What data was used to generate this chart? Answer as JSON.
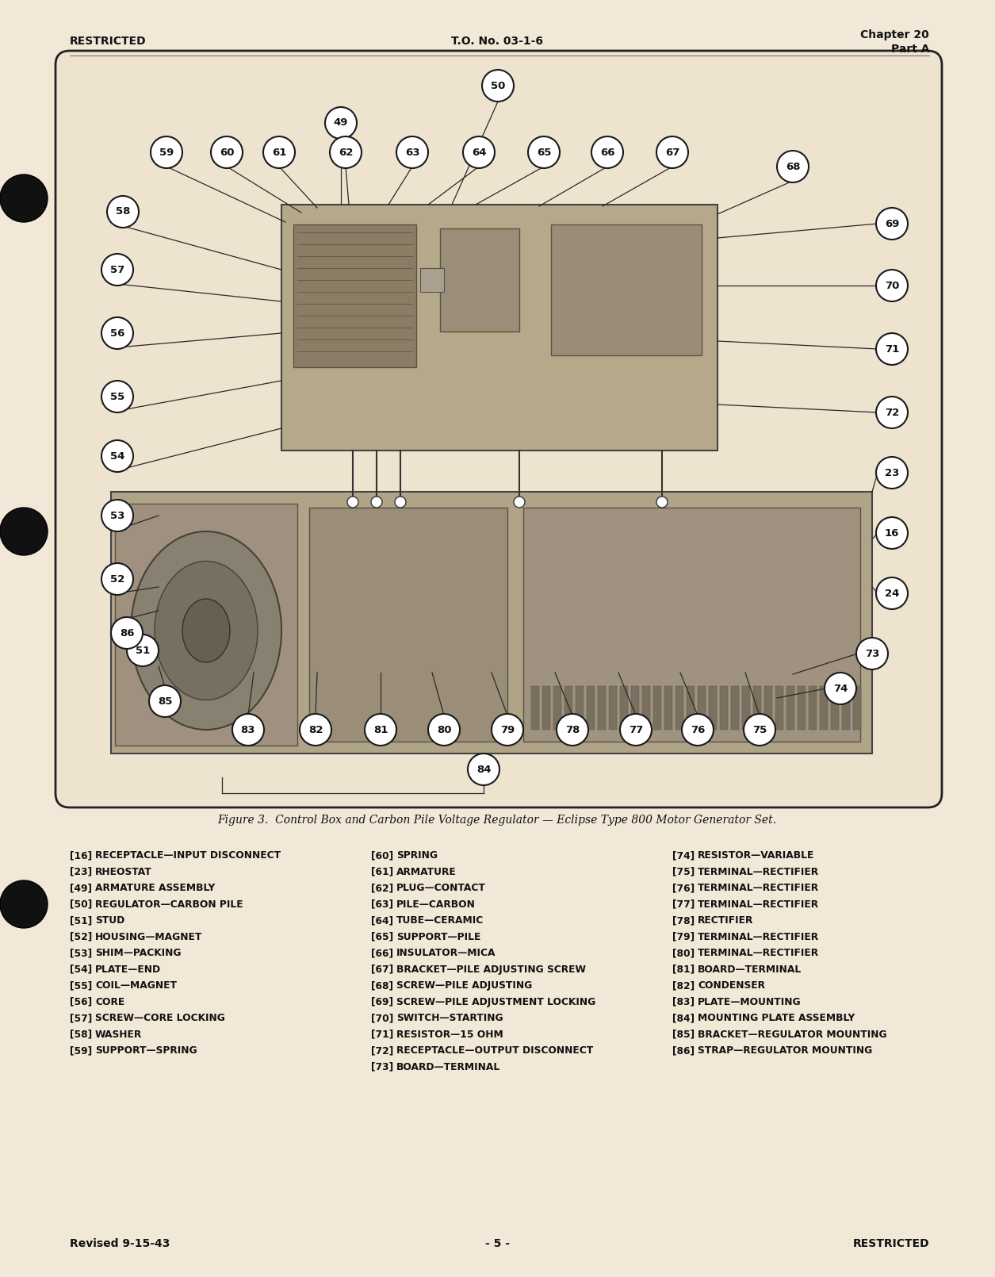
{
  "page_bg": "#f2e8d8",
  "diagram_bg": "#ede3cf",
  "header_left": "RESTRICTED",
  "header_center": "T.O. No. 03-1-6",
  "header_right_line1": "Chapter 20",
  "header_right_line2": "Part A",
  "footer_left": "Revised 9-15-43",
  "footer_center": "- 5 -",
  "footer_right": "RESTRICTED",
  "figure_caption": "Figure 3.  Control Box and Carbon Pile Voltage Regulator — Eclipse Type 800 Motor Generator Set.",
  "legend_col1": [
    [
      "[16]",
      "RECEPTACLE—INPUT DISCONNECT"
    ],
    [
      "[23]",
      "RHEOSTAT"
    ],
    [
      "[49]",
      "ARMATURE ASSEMBLY"
    ],
    [
      "[50]",
      "REGULATOR—CARBON PILE"
    ],
    [
      "[51]",
      "STUD"
    ],
    [
      "[52]",
      "HOUSING—MAGNET"
    ],
    [
      "[53]",
      "SHIM—PACKING"
    ],
    [
      "[54]",
      "PLATE—END"
    ],
    [
      "[55]",
      "COIL—MAGNET"
    ],
    [
      "[56]",
      "CORE"
    ],
    [
      "[57]",
      "SCREW—CORE LOCKING"
    ],
    [
      "[58]",
      "WASHER"
    ],
    [
      "[59]",
      "SUPPORT—SPRING"
    ]
  ],
  "legend_col2": [
    [
      "[60]",
      "SPRING"
    ],
    [
      "[61]",
      "ARMATURE"
    ],
    [
      "[62]",
      "PLUG—CONTACT"
    ],
    [
      "[63]",
      "PILE—CARBON"
    ],
    [
      "[64]",
      "TUBE—CERAMIC"
    ],
    [
      "[65]",
      "SUPPORT—PILE"
    ],
    [
      "[66]",
      "INSULATOR—MICA"
    ],
    [
      "[67]",
      "BRACKET—PILE ADJUSTING SCREW"
    ],
    [
      "[68]",
      "SCREW—PILE ADJUSTING"
    ],
    [
      "[69]",
      "SCREW—PILE ADJUSTMENT LOCKING"
    ],
    [
      "[70]",
      "SWITCH—STARTING"
    ],
    [
      "[71]",
      "RESISTOR—15 OHM"
    ],
    [
      "[72]",
      "RECEPTACLE—OUTPUT DISCONNECT"
    ],
    [
      "[73]",
      "BOARD—TERMINAL"
    ]
  ],
  "legend_col3": [
    [
      "[74]",
      "RESISTOR—VARIABLE"
    ],
    [
      "[75]",
      "TERMINAL—RECTIFIER"
    ],
    [
      "[76]",
      "TERMINAL—RECTIFIER"
    ],
    [
      "[77]",
      "TERMINAL—RECTIFIER"
    ],
    [
      "[78]",
      "RECTIFIER"
    ],
    [
      "[79]",
      "TERMINAL—RECTIFIER"
    ],
    [
      "[80]",
      "TERMINAL—RECTIFIER"
    ],
    [
      "[81]",
      "BOARD—TERMINAL"
    ],
    [
      "[82]",
      "CONDENSER"
    ],
    [
      "[83]",
      "PLATE—MOUNTING"
    ],
    [
      "[84]",
      "MOUNTING PLATE ASSEMBLY"
    ],
    [
      "[85]",
      "BRACKET—REGULATOR MOUNTING"
    ],
    [
      "[86]",
      "STRAP—REGULATOR MOUNTING"
    ]
  ],
  "callouts_top": [
    [
      "50",
      628,
      108
    ],
    [
      "49",
      430,
      155
    ],
    [
      "59",
      210,
      192
    ],
    [
      "60",
      286,
      192
    ],
    [
      "61",
      352,
      192
    ],
    [
      "62",
      436,
      192
    ],
    [
      "63",
      520,
      192
    ],
    [
      "64",
      604,
      192
    ],
    [
      "65",
      686,
      192
    ],
    [
      "66",
      766,
      192
    ],
    [
      "67",
      848,
      192
    ],
    [
      "68",
      1000,
      210
    ]
  ],
  "callouts_left": [
    [
      "58",
      155,
      267
    ],
    [
      "57",
      148,
      340
    ],
    [
      "56",
      148,
      420
    ],
    [
      "55",
      148,
      500
    ],
    [
      "54",
      148,
      575
    ],
    [
      "53",
      148,
      650
    ],
    [
      "52",
      148,
      730
    ],
    [
      "51",
      180,
      820
    ],
    [
      "86",
      160,
      798
    ]
  ],
  "callouts_right": [
    [
      "69",
      1125,
      282
    ],
    [
      "70",
      1125,
      360
    ],
    [
      "71",
      1125,
      440
    ],
    [
      "72",
      1125,
      520
    ],
    [
      "23",
      1125,
      596
    ],
    [
      "16",
      1125,
      672
    ],
    [
      "24",
      1125,
      748
    ]
  ],
  "callouts_bottom_right": [
    [
      "73",
      1100,
      824
    ],
    [
      "74",
      1060,
      868
    ]
  ],
  "callouts_bottom": [
    [
      "85",
      208,
      884
    ],
    [
      "83",
      313,
      920
    ],
    [
      "82",
      398,
      920
    ],
    [
      "81",
      480,
      920
    ],
    [
      "80",
      560,
      920
    ],
    [
      "79",
      640,
      920
    ],
    [
      "78",
      722,
      920
    ],
    [
      "77",
      802,
      920
    ],
    [
      "76",
      880,
      920
    ],
    [
      "75",
      958,
      920
    ],
    [
      "84",
      610,
      970
    ]
  ]
}
